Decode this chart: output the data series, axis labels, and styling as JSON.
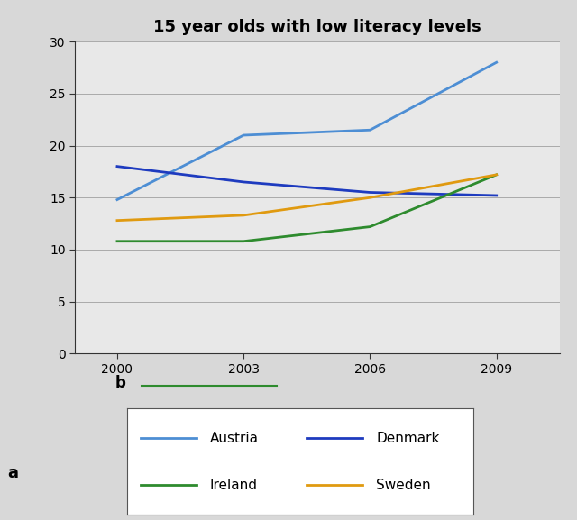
{
  "title": "15 year olds with low literacy levels",
  "ylabel": "a",
  "years": [
    2000,
    2003,
    2006,
    2009
  ],
  "series": {
    "Austria": {
      "values": [
        14.8,
        21.0,
        21.5,
        28.0
      ],
      "color": "#4d8ed4"
    },
    "Denmark": {
      "values": [
        18.0,
        16.5,
        15.5,
        15.2
      ],
      "color": "#1e3bbf"
    },
    "Ireland": {
      "values": [
        10.8,
        10.8,
        12.2,
        17.2
      ],
      "color": "#2e8b2e"
    },
    "Sweden": {
      "values": [
        12.8,
        13.3,
        15.0,
        17.2
      ],
      "color": "#e09a10"
    }
  },
  "ylim": [
    0,
    30
  ],
  "yticks": [
    0,
    5,
    10,
    15,
    20,
    25,
    30
  ],
  "xticks": [
    2000,
    2003,
    2006,
    2009
  ],
  "figure_bg": "#d8d8d8",
  "plot_bg": "#e8e8e8",
  "grid_color": "#aaaaaa",
  "title_fontsize": 13,
  "tick_fontsize": 10,
  "legend_below_label": "b",
  "legend_line_color": "#2e8b2e"
}
